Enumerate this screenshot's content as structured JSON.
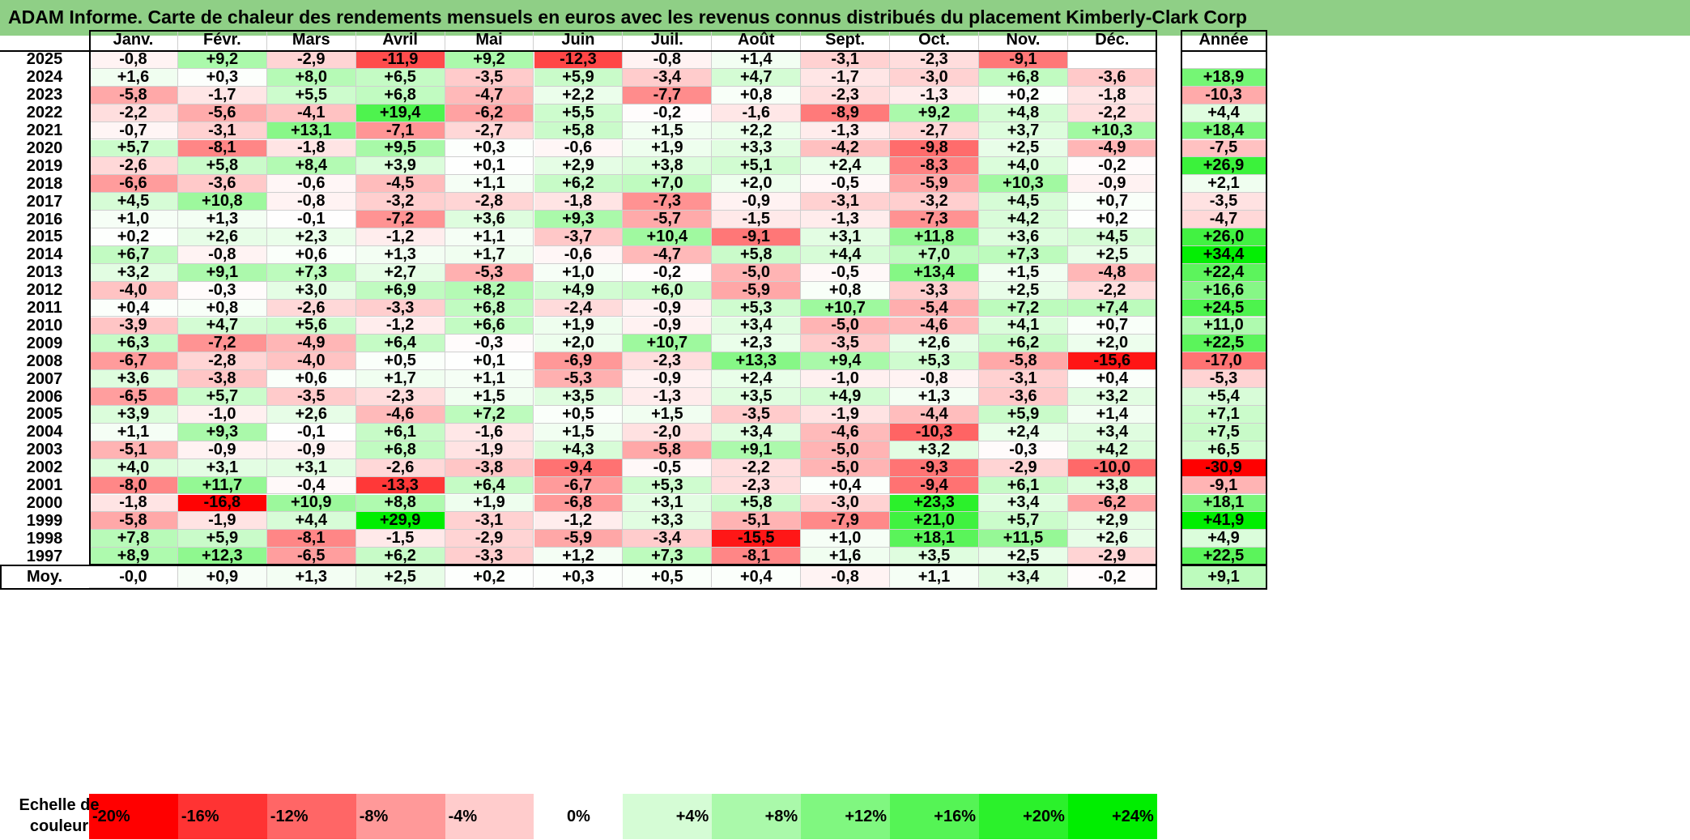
{
  "title": "ADAM Informe. Carte de chaleur des rendements mensuels en euros avec les revenus connus distribués du placement Kimberly-Clark Corp",
  "chart_data": {
    "type": "heatmap",
    "columns": [
      "Janv.",
      "Févr.",
      "Mars",
      "Avril",
      "Mai",
      "Juin",
      "Juil.",
      "Août",
      "Sept.",
      "Oct.",
      "Nov.",
      "Déc."
    ],
    "year_column": "Année",
    "rows": [
      {
        "year": "2025",
        "values": [
          "-0,8",
          "+9,2",
          "-2,9",
          "-11,9",
          "+9,2",
          "-12,3",
          "-0,8",
          "+1,4",
          "-3,1",
          "-2,3",
          "-9,1",
          ""
        ],
        "annual": ""
      },
      {
        "year": "2024",
        "values": [
          "+1,6",
          "+0,3",
          "+8,0",
          "+6,5",
          "-3,5",
          "+5,9",
          "-3,4",
          "+4,7",
          "-1,7",
          "-3,0",
          "+6,8",
          "-3,6"
        ],
        "annual": "+18,9"
      },
      {
        "year": "2023",
        "values": [
          "-5,8",
          "-1,7",
          "+5,5",
          "+6,8",
          "-4,7",
          "+2,2",
          "-7,7",
          "+0,8",
          "-2,3",
          "-1,3",
          "+0,2",
          "-1,8"
        ],
        "annual": "-10,3"
      },
      {
        "year": "2022",
        "values": [
          "-2,2",
          "-5,6",
          "-4,1",
          "+19,4",
          "-6,2",
          "+5,5",
          "-0,2",
          "-1,6",
          "-8,9",
          "+9,2",
          "+4,8",
          "-2,2"
        ],
        "annual": "+4,4"
      },
      {
        "year": "2021",
        "values": [
          "-0,7",
          "-3,1",
          "+13,1",
          "-7,1",
          "-2,7",
          "+5,8",
          "+1,5",
          "+2,2",
          "-1,3",
          "-2,7",
          "+3,7",
          "+10,3"
        ],
        "annual": "+18,4"
      },
      {
        "year": "2020",
        "values": [
          "+5,7",
          "-8,1",
          "-1,8",
          "+9,5",
          "+0,3",
          "-0,6",
          "+1,9",
          "+3,3",
          "-4,2",
          "-9,8",
          "+2,5",
          "-4,9"
        ],
        "annual": "-7,5"
      },
      {
        "year": "2019",
        "values": [
          "-2,6",
          "+5,8",
          "+8,4",
          "+3,9",
          "+0,1",
          "+2,9",
          "+3,8",
          "+5,1",
          "+2,4",
          "-8,3",
          "+4,0",
          "-0,2"
        ],
        "annual": "+26,9"
      },
      {
        "year": "2018",
        "values": [
          "-6,6",
          "-3,6",
          "-0,6",
          "-4,5",
          "+1,1",
          "+6,2",
          "+7,0",
          "+2,0",
          "-0,5",
          "-5,9",
          "+10,3",
          "-0,9"
        ],
        "annual": "+2,1"
      },
      {
        "year": "2017",
        "values": [
          "+4,5",
          "+10,8",
          "-0,8",
          "-3,2",
          "-2,8",
          "-1,8",
          "-7,3",
          "-0,9",
          "-3,1",
          "-3,2",
          "+4,5",
          "+0,7"
        ],
        "annual": "-3,5"
      },
      {
        "year": "2016",
        "values": [
          "+1,0",
          "+1,3",
          "-0,1",
          "-7,2",
          "+3,6",
          "+9,3",
          "-5,7",
          "-1,5",
          "-1,3",
          "-7,3",
          "+4,2",
          "+0,2"
        ],
        "annual": "-4,7"
      },
      {
        "year": "2015",
        "values": [
          "+0,2",
          "+2,6",
          "+2,3",
          "-1,2",
          "+1,1",
          "-3,7",
          "+10,4",
          "-9,1",
          "+3,1",
          "+11,8",
          "+3,6",
          "+4,5"
        ],
        "annual": "+26,0"
      },
      {
        "year": "2014",
        "values": [
          "+6,7",
          "-0,8",
          "+0,6",
          "+1,3",
          "+1,7",
          "-0,6",
          "-4,7",
          "+5,8",
          "+4,4",
          "+7,0",
          "+7,3",
          "+2,5"
        ],
        "annual": "+34,4"
      },
      {
        "year": "2013",
        "values": [
          "+3,2",
          "+9,1",
          "+7,3",
          "+2,7",
          "-5,3",
          "+1,0",
          "-0,2",
          "-5,0",
          "-0,5",
          "+13,4",
          "+1,5",
          "-4,8"
        ],
        "annual": "+22,4"
      },
      {
        "year": "2012",
        "values": [
          "-4,0",
          "-0,3",
          "+3,0",
          "+6,9",
          "+8,2",
          "+4,9",
          "+6,0",
          "-5,9",
          "+0,8",
          "-3,3",
          "+2,5",
          "-2,2"
        ],
        "annual": "+16,6"
      },
      {
        "year": "2011",
        "values": [
          "+0,4",
          "+0,8",
          "-2,6",
          "-3,3",
          "+6,8",
          "-2,4",
          "-0,9",
          "+5,3",
          "+10,7",
          "-5,4",
          "+7,2",
          "+7,4"
        ],
        "annual": "+24,5"
      },
      {
        "year": "2010",
        "values": [
          "-3,9",
          "+4,7",
          "+5,6",
          "-1,2",
          "+6,6",
          "+1,9",
          "-0,9",
          "+3,4",
          "-5,0",
          "-4,6",
          "+4,1",
          "+0,7"
        ],
        "annual": "+11,0"
      },
      {
        "year": "2009",
        "values": [
          "+6,3",
          "-7,2",
          "-4,9",
          "+6,4",
          "-0,3",
          "+2,0",
          "+10,7",
          "+2,3",
          "-3,5",
          "+2,6",
          "+6,2",
          "+2,0"
        ],
        "annual": "+22,5"
      },
      {
        "year": "2008",
        "values": [
          "-6,7",
          "-2,8",
          "-4,0",
          "+0,5",
          "+0,1",
          "-6,9",
          "-2,3",
          "+13,3",
          "+9,4",
          "+5,3",
          "-5,8",
          "-15,6"
        ],
        "annual": "-17,0"
      },
      {
        "year": "2007",
        "values": [
          "+3,6",
          "-3,8",
          "+0,6",
          "+1,7",
          "+1,1",
          "-5,3",
          "-0,9",
          "+2,4",
          "-1,0",
          "-0,8",
          "-3,1",
          "+0,4"
        ],
        "annual": "-5,3"
      },
      {
        "year": "2006",
        "values": [
          "-6,5",
          "+5,7",
          "-3,5",
          "-2,3",
          "+1,5",
          "+3,5",
          "-1,3",
          "+3,5",
          "+4,9",
          "+1,3",
          "-3,6",
          "+3,2"
        ],
        "annual": "+5,4"
      },
      {
        "year": "2005",
        "values": [
          "+3,9",
          "-1,0",
          "+2,6",
          "-4,6",
          "+7,2",
          "+0,5",
          "+1,5",
          "-3,5",
          "-1,9",
          "-4,4",
          "+5,9",
          "+1,4"
        ],
        "annual": "+7,1"
      },
      {
        "year": "2004",
        "values": [
          "+1,1",
          "+9,3",
          "-0,1",
          "+6,1",
          "-1,6",
          "+1,5",
          "-2,0",
          "+3,4",
          "-4,6",
          "-10,3",
          "+2,4",
          "+3,4"
        ],
        "annual": "+7,5"
      },
      {
        "year": "2003",
        "values": [
          "-5,1",
          "-0,9",
          "-0,9",
          "+6,8",
          "-1,9",
          "+4,3",
          "-5,8",
          "+9,1",
          "-5,0",
          "+3,2",
          "-0,3",
          "+4,2"
        ],
        "annual": "+6,5"
      },
      {
        "year": "2002",
        "values": [
          "+4,0",
          "+3,1",
          "+3,1",
          "-2,6",
          "-3,8",
          "-9,4",
          "-0,5",
          "-2,2",
          "-5,0",
          "-9,3",
          "-2,9",
          "-10,0"
        ],
        "annual": "-30,9"
      },
      {
        "year": "2001",
        "values": [
          "-8,0",
          "+11,7",
          "-0,4",
          "-13,3",
          "+6,4",
          "-6,7",
          "+5,3",
          "-2,3",
          "+0,4",
          "-9,4",
          "+6,1",
          "+3,8"
        ],
        "annual": "-9,1"
      },
      {
        "year": "2000",
        "values": [
          "-1,8",
          "-16,8",
          "+10,9",
          "+8,8",
          "+1,9",
          "-6,8",
          "+3,1",
          "+5,8",
          "-3,0",
          "+23,3",
          "+3,4",
          "-6,2"
        ],
        "annual": "+18,1"
      },
      {
        "year": "1999",
        "values": [
          "-5,8",
          "-1,9",
          "+4,4",
          "+29,9",
          "-3,1",
          "-1,2",
          "+3,3",
          "-5,1",
          "-7,9",
          "+21,0",
          "+5,7",
          "+2,9"
        ],
        "annual": "+41,9"
      },
      {
        "year": "1998",
        "values": [
          "+7,8",
          "+5,9",
          "-8,1",
          "-1,5",
          "-2,9",
          "-5,9",
          "-3,4",
          "-15,5",
          "+1,0",
          "+18,1",
          "+11,5",
          "+2,6"
        ],
        "annual": "+4,9"
      },
      {
        "year": "1997",
        "values": [
          "+8,9",
          "+12,3",
          "-6,5",
          "+6,2",
          "-3,3",
          "+1,2",
          "+7,3",
          "-8,1",
          "+1,6",
          "+3,5",
          "+2,5",
          "-2,9"
        ],
        "annual": "+22,5"
      }
    ],
    "average": {
      "label": "Moy.",
      "values": [
        "-0,0",
        "+0,9",
        "+1,3",
        "+2,5",
        "+0,2",
        "+0,3",
        "+0,5",
        "+0,4",
        "-0,8",
        "+1,1",
        "+3,4",
        "-0,2"
      ],
      "annual": "+9,1"
    },
    "scale": {
      "label": "Echelle de couleur",
      "steps": [
        {
          "label": "-20%",
          "value": -20
        },
        {
          "label": "-16%",
          "value": -16
        },
        {
          "label": "-12%",
          "value": -12
        },
        {
          "label": "-8%",
          "value": -8
        },
        {
          "label": "-4%",
          "value": -4
        },
        {
          "label": "0%",
          "value": 0
        },
        {
          "label": "+4%",
          "value": 4
        },
        {
          "label": "+8%",
          "value": 8
        },
        {
          "label": "+12%",
          "value": 12
        },
        {
          "label": "+16%",
          "value": 16
        },
        {
          "label": "+20%",
          "value": 20
        },
        {
          "label": "+24%",
          "value": 24
        }
      ]
    },
    "colors": {
      "negative": "#ff0000",
      "neutral": "#ffffff",
      "positive": "#00ee00"
    }
  }
}
